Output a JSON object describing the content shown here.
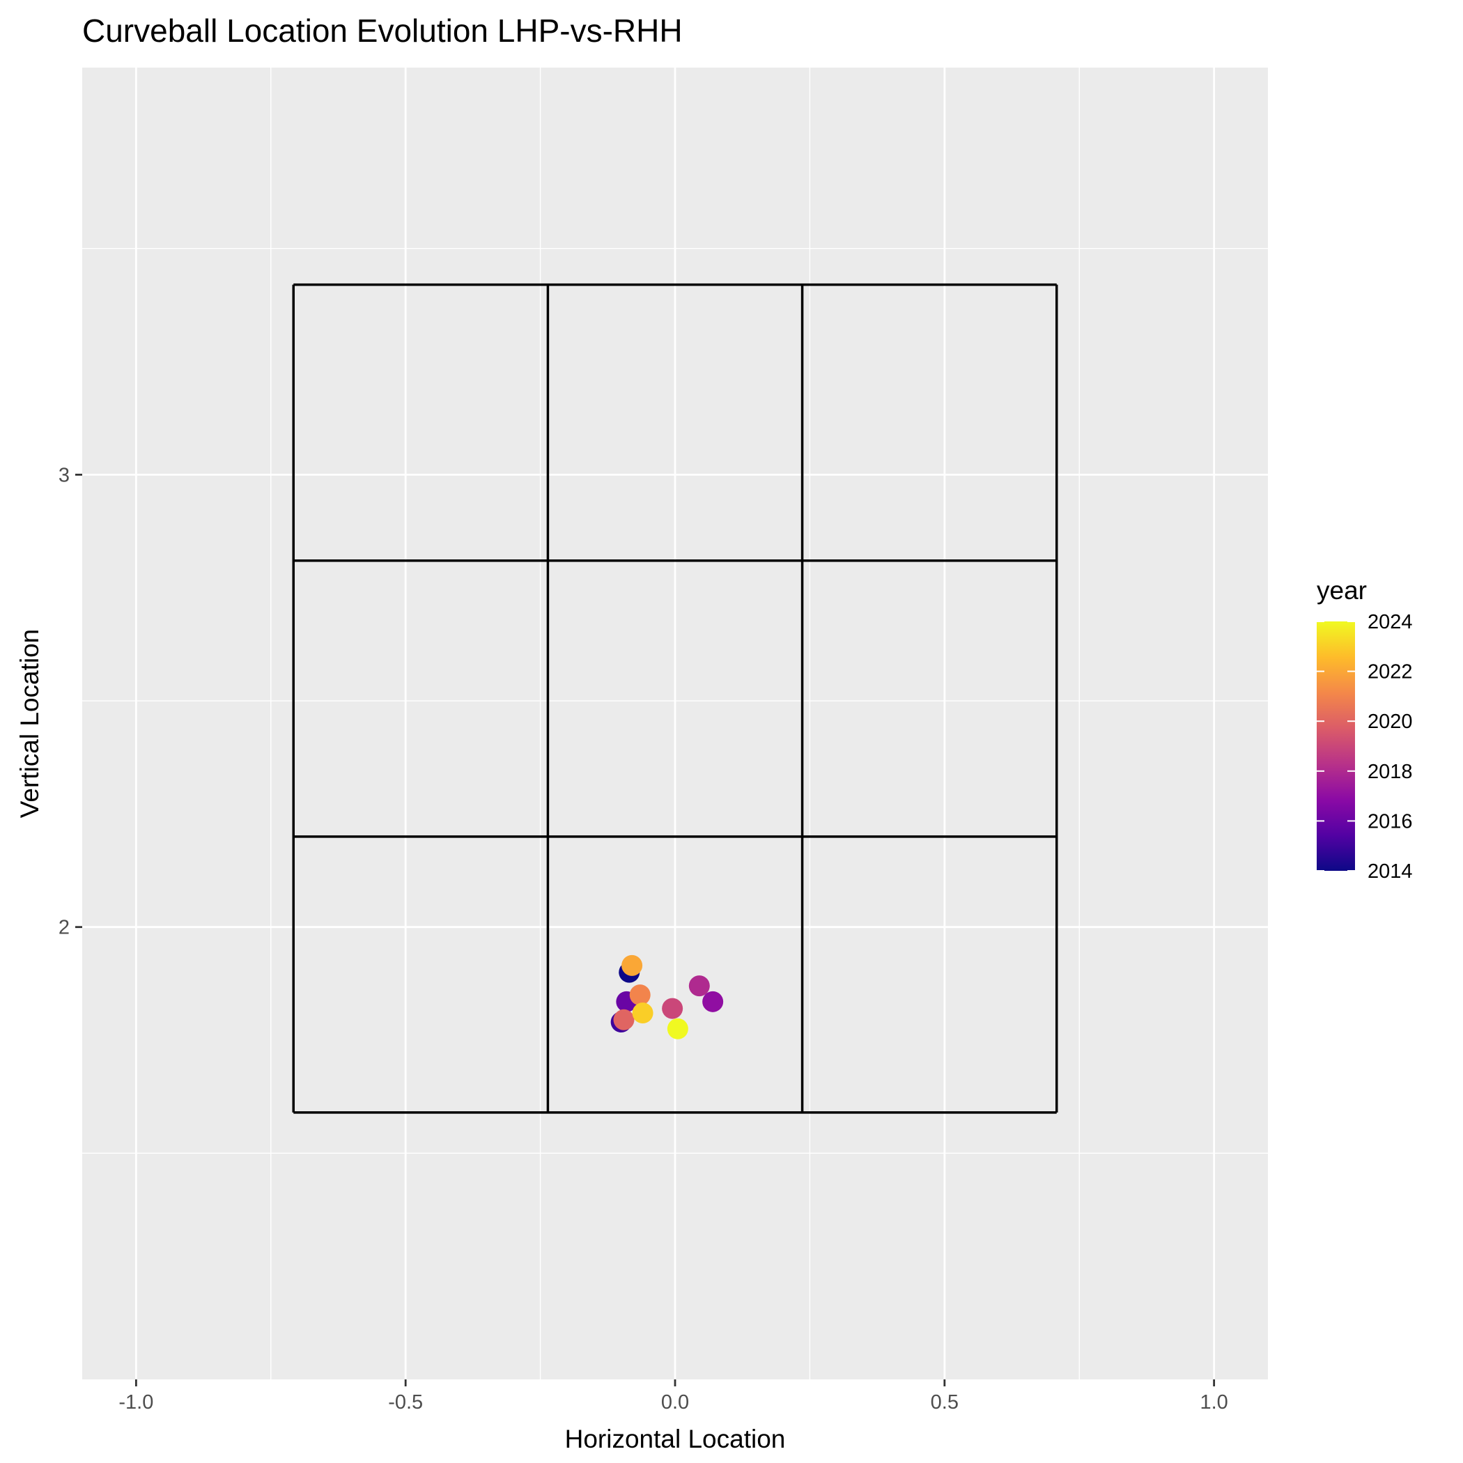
{
  "chart_data": {
    "type": "scatter",
    "title": "Curveball Location Evolution LHP-vs-RHH",
    "xlabel": "Horizontal Location",
    "ylabel": "Vertical Location",
    "xlim": [
      -1.1,
      1.1
    ],
    "ylim": [
      1.0,
      3.9
    ],
    "x_ticks": [
      -1.0,
      -0.5,
      0.0,
      0.5,
      1.0
    ],
    "x_tick_labels": [
      "-1.0",
      "-0.5",
      "0.0",
      "0.5",
      "1.0"
    ],
    "y_ticks": [
      2,
      3
    ],
    "y_tick_labels": [
      "2",
      "3"
    ],
    "grid": true,
    "background_color": "#EBEBEB",
    "color_variable": "year",
    "color_scale": {
      "name": "plasma",
      "min": 2014,
      "max": 2024,
      "stops": [
        "#0D0887",
        "#5302A3",
        "#8B0AA5",
        "#B83289",
        "#DB5C68",
        "#F48849",
        "#FEBC2A",
        "#F0F921"
      ]
    },
    "strike_zone": {
      "x_edges": [
        -0.708,
        -0.236,
        0.236,
        0.708
      ],
      "y_edges": [
        1.59,
        2.2,
        2.81,
        3.42
      ]
    },
    "points": [
      {
        "x": -0.085,
        "y": 1.9,
        "year": 2014
      },
      {
        "x": -0.1,
        "y": 1.79,
        "year": 2015
      },
      {
        "x": -0.09,
        "y": 1.835,
        "year": 2016
      },
      {
        "x": 0.07,
        "y": 1.835,
        "year": 2017
      },
      {
        "x": 0.045,
        "y": 1.87,
        "year": 2018
      },
      {
        "x": -0.005,
        "y": 1.82,
        "year": 2019
      },
      {
        "x": -0.095,
        "y": 1.795,
        "year": 2020
      },
      {
        "x": -0.065,
        "y": 1.85,
        "year": 2021
      },
      {
        "x": -0.08,
        "y": 1.915,
        "year": 2022
      },
      {
        "x": -0.06,
        "y": 1.81,
        "year": 2023
      },
      {
        "x": 0.005,
        "y": 1.775,
        "year": 2024
      }
    ],
    "legend": {
      "title": "year",
      "position": "right",
      "breaks": [
        2014,
        2016,
        2018,
        2020,
        2022,
        2024
      ],
      "labels": [
        "2014",
        "2016",
        "2018",
        "2020",
        "2022",
        "2024"
      ]
    }
  }
}
